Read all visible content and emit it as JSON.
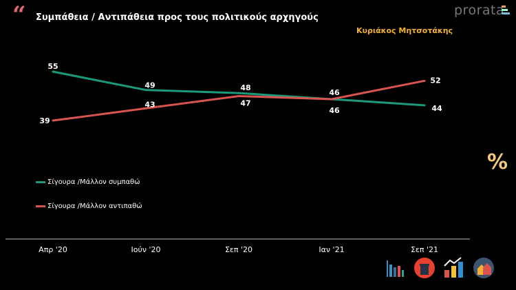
{
  "header": {
    "title": "Συμπάθεια / Αντιπάθεια προς τους πολιτικούς αρχηγούς",
    "subtitle": "Κυριάκος Μητσοτάκης",
    "logo": "prorata",
    "percent_symbol": "%"
  },
  "chart_data": {
    "type": "line",
    "title": "Συμπάθεια / Αντιπάθεια προς τους πολιτικούς αρχηγούς",
    "subtitle": "Κυριάκος Μητσοτάκης",
    "categories": [
      "Απρ '20",
      "Ιούν '20",
      "Σεπ '20",
      "Ιαν '21",
      "Σεπ '21"
    ],
    "series": [
      {
        "name": "Σίγουρα /Μάλλον συμπαθώ",
        "values": [
          55,
          49,
          48,
          46,
          44
        ],
        "color": "#1a9a7a"
      },
      {
        "name": "Σίγουρα /Μάλλον αντιπαθώ",
        "values": [
          39,
          43,
          47,
          46,
          52
        ],
        "color": "#d9534f"
      }
    ],
    "legend": "left-middle",
    "grid": false
  },
  "colors": {
    "background": "#000000",
    "accent": "#f2b134",
    "quote": "#e06a6a"
  },
  "footer_icons": [
    "bar-chart-icon",
    "podium-icon",
    "growth-chart-icon",
    "houses-icon"
  ]
}
